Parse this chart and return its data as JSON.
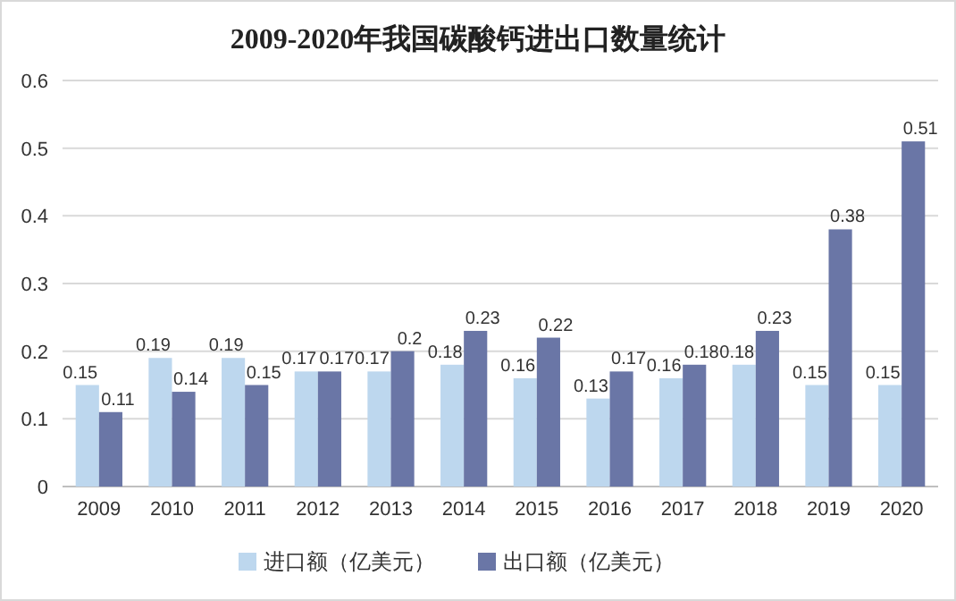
{
  "chart_data": {
    "type": "bar",
    "title": "2009-2020年我国碳酸钙进出口数量统计",
    "categories": [
      "2009",
      "2010",
      "2011",
      "2012",
      "2013",
      "2014",
      "2015",
      "2016",
      "2017",
      "2018",
      "2019",
      "2020"
    ],
    "series": [
      {
        "name": "进口额（亿美元）",
        "color": "#bdd7ee",
        "values": [
          0.15,
          0.19,
          0.19,
          0.17,
          0.17,
          0.18,
          0.16,
          0.13,
          0.16,
          0.18,
          0.15,
          0.15
        ]
      },
      {
        "name": "出口额（亿美元）",
        "color": "#6a76a6",
        "values": [
          0.11,
          0.14,
          0.15,
          0.17,
          0.2,
          0.23,
          0.22,
          0.17,
          0.18,
          0.23,
          0.38,
          0.51
        ]
      }
    ],
    "ylim": [
      0,
      0.6
    ],
    "yticks": [
      0,
      0.1,
      0.2,
      0.3,
      0.4,
      0.5,
      0.6
    ],
    "grid": "y",
    "legend": "bottom",
    "data_labels": true
  }
}
